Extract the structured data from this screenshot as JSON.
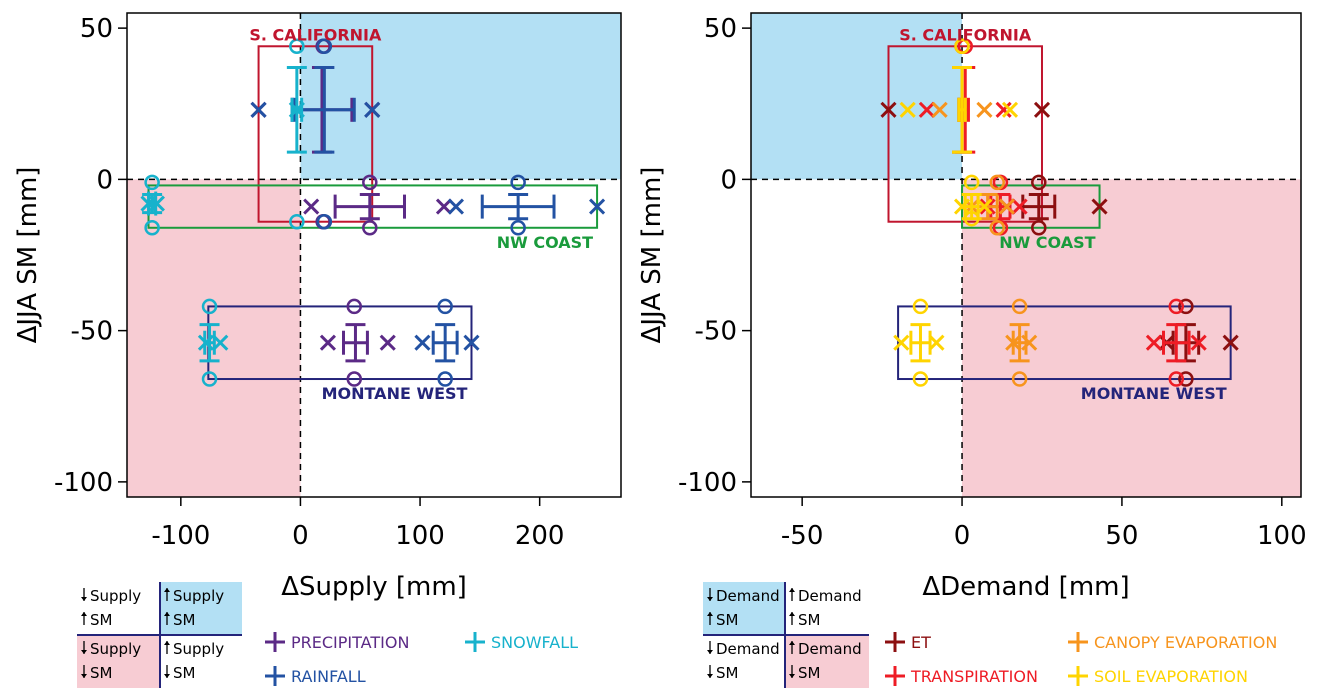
{
  "colors": {
    "s_california": "#c0152e",
    "nw_coast": "#1a9b3c",
    "montane_west": "#24247a",
    "quad_blue": "#b3e0f4",
    "quad_pink": "#f7ccd3",
    "precipitation": "#5b2a86",
    "rainfall": "#2352a3",
    "snowfall": "#17b2cc",
    "et": "#8c0f10",
    "transpiration": "#ee1c25",
    "canopy": "#f7941d",
    "soil": "#ffd400"
  },
  "chart_data": [
    {
      "type": "scatter",
      "title": "",
      "xlabel": "ΔSupply [mm]",
      "ylabel": "ΔJJA SM [mm]",
      "xlim": [
        -145,
        268
      ],
      "ylim": [
        -105,
        55
      ],
      "xticks": [
        -100,
        0,
        100,
        200
      ],
      "yticks": [
        -100,
        -50,
        0,
        50
      ],
      "shaded_quadrants": [
        {
          "quadrant": "x>0,y>0",
          "color": "quad_blue"
        },
        {
          "quadrant": "x<0,y<0",
          "color": "quad_pink"
        }
      ],
      "regions": [
        {
          "name": "S. CALIFORNIA",
          "color": "s_california",
          "box": {
            "x": [
              -35,
              60
            ],
            "y": [
              -14,
              44
            ]
          },
          "label_pos": "top"
        },
        {
          "name": "NW COAST",
          "color": "nw_coast",
          "box": {
            "x": [
              -127,
              248
            ],
            "y": [
              -16,
              -2
            ]
          },
          "label_pos": "bottom-right"
        },
        {
          "name": "MONTANE WEST",
          "color": "montane_west",
          "box": {
            "x": [
              -77,
              143
            ],
            "y": [
              -66,
              -42
            ]
          },
          "label_pos": "bottom-right"
        }
      ],
      "series": [
        {
          "name": "PRECIPITATION",
          "color": "precipitation",
          "points": [
            {
              "region": "S. CALIFORNIA",
              "mean": [
                18,
                23
              ],
              "err_x": 25,
              "err_y": 14,
              "circles": [
                [
                  19,
                  44
                ],
                [
                  19,
                  -14
                ]
              ],
              "crosses": [
                [
                  -35,
                  23
                ],
                [
                  60,
                  23
                ]
              ]
            },
            {
              "region": "NW COAST",
              "mean": [
                58,
                -9
              ],
              "err_x": 29,
              "err_y": 4,
              "circles": [
                [
                  58,
                  -1
                ],
                [
                  58,
                  -16
                ]
              ],
              "crosses": [
                [
                  9,
                  -9
                ],
                [
                  120,
                  -9
                ]
              ]
            },
            {
              "region": "MONTANE WEST",
              "mean": [
                46,
                -54
              ],
              "err_x": 10,
              "err_y": 6,
              "circles": [
                [
                  45,
                  -42
                ],
                [
                  45,
                  -66
                ]
              ],
              "crosses": [
                [
                  23,
                  -54
                ],
                [
                  73,
                  -54
                ]
              ]
            }
          ]
        },
        {
          "name": "RAINFALL",
          "color": "rainfall",
          "points": [
            {
              "region": "S. CALIFORNIA",
              "mean": [
                20,
                23
              ],
              "err_x": 25,
              "err_y": 14,
              "circles": [
                [
                  20,
                  44
                ],
                [
                  20,
                  -14
                ]
              ],
              "crosses": [
                [
                  -35,
                  23
                ],
                [
                  60,
                  23
                ]
              ]
            },
            {
              "region": "NW COAST",
              "mean": [
                182,
                -9
              ],
              "err_x": 30,
              "err_y": 4,
              "circles": [
                [
                  182,
                  -1
                ],
                [
                  182,
                  -16
                ]
              ],
              "crosses": [
                [
                  130,
                  -9
                ],
                [
                  248,
                  -9
                ]
              ]
            },
            {
              "region": "MONTANE WEST",
              "mean": [
                121,
                -54
              ],
              "err_x": 10,
              "err_y": 6,
              "circles": [
                [
                  121,
                  -42
                ],
                [
                  121,
                  -66
                ]
              ],
              "crosses": [
                [
                  102,
                  -54
                ],
                [
                  143,
                  -54
                ]
              ]
            }
          ]
        },
        {
          "name": "SNOWFALL",
          "color": "snowfall",
          "points": [
            {
              "region": "S. CALIFORNIA",
              "mean": [
                -3,
                23
              ],
              "err_x": 4,
              "err_y": 14,
              "circles": [
                [
                  -3,
                  44
                ],
                [
                  -3,
                  -14
                ]
              ],
              "crosses": [
                [
                  -3,
                  23
                ]
              ]
            },
            {
              "region": "NW COAST",
              "mean": [
                -124,
                -8
              ],
              "err_x": 3,
              "err_y": 3,
              "circles": [
                [
                  -124,
                  -1
                ],
                [
                  -124,
                  -16
                ]
              ],
              "crosses": [
                [
                  -127,
                  -8
                ],
                [
                  -120,
                  -8
                ]
              ]
            },
            {
              "region": "MONTANE WEST",
              "mean": [
                -76,
                -54
              ],
              "err_x": 4,
              "err_y": 6,
              "circles": [
                [
                  -76,
                  -42
                ],
                [
                  -76,
                  -66
                ]
              ],
              "crosses": [
                [
                  -79,
                  -54
                ],
                [
                  -67,
                  -54
                ]
              ]
            }
          ]
        }
      ],
      "legend": [
        {
          "name": "PRECIPITATION",
          "color": "precipitation"
        },
        {
          "name": "SNOWFALL",
          "color": "snowfall"
        },
        {
          "name": "RAINFALL",
          "color": "rainfall"
        }
      ]
    },
    {
      "type": "scatter",
      "title": "",
      "xlabel": "ΔDemand [mm]",
      "ylabel": "ΔJJA SM [mm]",
      "xlim": [
        -66,
        106
      ],
      "ylim": [
        -105,
        55
      ],
      "xticks": [
        -50,
        0,
        50,
        100
      ],
      "yticks": [
        -100,
        -50,
        0,
        50
      ],
      "shaded_quadrants": [
        {
          "quadrant": "x<0,y>0",
          "color": "quad_blue"
        },
        {
          "quadrant": "x>0,y<0",
          "color": "quad_pink"
        }
      ],
      "regions": [
        {
          "name": "S. CALIFORNIA",
          "color": "s_california",
          "box": {
            "x": [
              -23,
              25
            ],
            "y": [
              -14,
              44
            ]
          },
          "label_pos": "top"
        },
        {
          "name": "NW COAST",
          "color": "nw_coast",
          "box": {
            "x": [
              0,
              43
            ],
            "y": [
              -16,
              -2
            ]
          },
          "label_pos": "bottom-right"
        },
        {
          "name": "MONTANE WEST",
          "color": "montane_west",
          "box": {
            "x": [
              -20,
              84
            ],
            "y": [
              -66,
              -42
            ]
          },
          "label_pos": "bottom-right"
        }
      ],
      "series": [
        {
          "name": "ET",
          "color": "et",
          "points": [
            {
              "region": "S. CALIFORNIA",
              "mean": [
                0,
                23
              ],
              "err_x": 1,
              "err_y": 14,
              "circles": [
                [
                  0,
                  44
                ]
              ],
              "crosses": [
                [
                  -23,
                  23
                ],
                [
                  25,
                  23
                ]
              ]
            },
            {
              "region": "NW COAST",
              "mean": [
                24,
                -9
              ],
              "err_x": 5,
              "err_y": 4,
              "circles": [
                [
                  24,
                  -1
                ],
                [
                  24,
                  -16
                ]
              ],
              "crosses": [
                [
                  14,
                  -9
                ],
                [
                  43,
                  -9
                ]
              ]
            },
            {
              "region": "MONTANE WEST",
              "mean": [
                70,
                -54
              ],
              "err_x": 4,
              "err_y": 6,
              "circles": [
                [
                  70,
                  -42
                ],
                [
                  70,
                  -66
                ]
              ],
              "crosses": [
                [
                  64,
                  -54
                ],
                [
                  84,
                  -54
                ]
              ]
            }
          ]
        },
        {
          "name": "TRANSPIRATION",
          "color": "transpiration",
          "points": [
            {
              "region": "S. CALIFORNIA",
              "mean": [
                1,
                23
              ],
              "err_x": 1,
              "err_y": 14,
              "circles": [
                [
                  1,
                  44
                ]
              ],
              "crosses": [
                [
                  -11,
                  23
                ],
                [
                  13,
                  23
                ]
              ]
            },
            {
              "region": "NW COAST",
              "mean": [
                12,
                -9
              ],
              "err_x": 3,
              "err_y": 4,
              "circles": [
                [
                  12,
                  -1
                ],
                [
                  12,
                  -16
                ]
              ],
              "crosses": [
                [
                  8,
                  -9
                ],
                [
                  18,
                  -9
                ]
              ]
            },
            {
              "region": "MONTANE WEST",
              "mean": [
                67,
                -54
              ],
              "err_x": 4,
              "err_y": 6,
              "circles": [
                [
                  67,
                  -42
                ],
                [
                  67,
                  -66
                ]
              ],
              "crosses": [
                [
                  60,
                  -54
                ],
                [
                  74,
                  -54
                ]
              ]
            }
          ]
        },
        {
          "name": "CANOPY EVAPORATION",
          "color": "canopy",
          "points": [
            {
              "region": "S. CALIFORNIA",
              "mean": [
                0,
                23
              ],
              "err_x": 1,
              "err_y": 14,
              "circles": [
                [
                  0,
                  44
                ]
              ],
              "crosses": [
                [
                  -7,
                  23
                ],
                [
                  7,
                  23
                ]
              ]
            },
            {
              "region": "NW COAST",
              "mean": [
                8,
                -9
              ],
              "err_x": 3,
              "err_y": 4,
              "circles": [
                [
                  11,
                  -1
                ],
                [
                  11,
                  -16
                ]
              ],
              "crosses": [
                [
                  3,
                  -9
                ],
                [
                  14,
                  -9
                ]
              ]
            },
            {
              "region": "MONTANE WEST",
              "mean": [
                18,
                -54
              ],
              "err_x": 2,
              "err_y": 6,
              "circles": [
                [
                  18,
                  -42
                ],
                [
                  18,
                  -66
                ]
              ],
              "crosses": [
                [
                  16,
                  -54
                ],
                [
                  21,
                  -54
                ]
              ]
            }
          ]
        },
        {
          "name": "SOIL EVAPORATION",
          "color": "soil",
          "points": [
            {
              "region": "S. CALIFORNIA",
              "mean": [
                0,
                23
              ],
              "err_x": 1,
              "err_y": 14,
              "circles": [
                [
                  0,
                  44
                ]
              ],
              "crosses": [
                [
                  -17,
                  23
                ],
                [
                  15,
                  23
                ]
              ]
            },
            {
              "region": "NW COAST",
              "mean": [
                3,
                -9
              ],
              "err_x": 2,
              "err_y": 4,
              "circles": [
                [
                  3,
                  -1
                ],
                [
                  3,
                  -13
                ]
              ],
              "crosses": [
                [
                  0,
                  -9
                ],
                [
                  7,
                  -9
                ]
              ]
            },
            {
              "region": "MONTANE WEST",
              "mean": [
                -13,
                -54
              ],
              "err_x": 3,
              "err_y": 6,
              "circles": [
                [
                  -13,
                  -42
                ],
                [
                  -13,
                  -66
                ]
              ],
              "crosses": [
                [
                  -19,
                  -54
                ],
                [
                  -8,
                  -54
                ]
              ]
            }
          ]
        }
      ],
      "legend": [
        {
          "name": "ET",
          "color": "et"
        },
        {
          "name": "CANOPY EVAPORATION",
          "color": "canopy"
        },
        {
          "name": "TRANSPIRATION",
          "color": "transpiration"
        },
        {
          "name": "SOIL EVAPORATION",
          "color": "soil"
        }
      ]
    }
  ],
  "keys": [
    {
      "cells": [
        {
          "lines": [
            "Supply",
            "SM"
          ],
          "arrows": [
            "down",
            "up"
          ],
          "shade": ""
        },
        {
          "lines": [
            "Supply",
            "SM"
          ],
          "arrows": [
            "up",
            "up"
          ],
          "shade": "quad_blue"
        },
        {
          "lines": [
            "Supply",
            "SM"
          ],
          "arrows": [
            "down",
            "down"
          ],
          "shade": "quad_pink"
        },
        {
          "lines": [
            "Supply",
            "SM"
          ],
          "arrows": [
            "up",
            "down"
          ],
          "shade": ""
        }
      ]
    },
    {
      "cells": [
        {
          "lines": [
            "Demand",
            "SM"
          ],
          "arrows": [
            "down",
            "up"
          ],
          "shade": "quad_blue"
        },
        {
          "lines": [
            "Demand",
            "SM"
          ],
          "arrows": [
            "up",
            "up"
          ],
          "shade": ""
        },
        {
          "lines": [
            "Demand",
            "SM"
          ],
          "arrows": [
            "down",
            "down"
          ],
          "shade": ""
        },
        {
          "lines": [
            "Demand",
            "SM"
          ],
          "arrows": [
            "up",
            "down"
          ],
          "shade": "quad_pink"
        }
      ]
    }
  ]
}
